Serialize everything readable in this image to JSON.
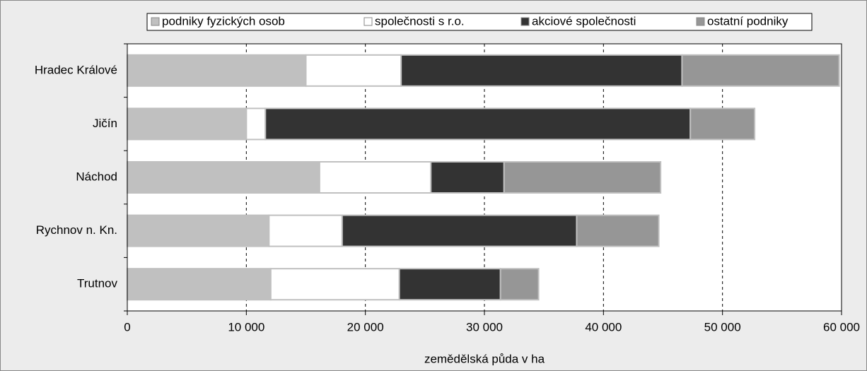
{
  "chart_data": {
    "type": "stacked-barh",
    "categories": [
      "Hradec Králové",
      "Jičín",
      "Náchod",
      "Rychnov n. Kn.",
      "Trutnov"
    ],
    "series": [
      {
        "name": "podniky fyzických osob",
        "color": "#c0c0c0",
        "values": [
          15000,
          10000,
          16150,
          11900,
          12050
        ]
      },
      {
        "name": "společnosti s r.o.",
        "color": "#ffffff",
        "values": [
          8000,
          1600,
          9350,
          6150,
          10800
        ]
      },
      {
        "name": "akciové společnosti",
        "color": "#333333",
        "values": [
          23600,
          35700,
          6150,
          19700,
          8500
        ]
      },
      {
        "name": "ostatní podniky",
        "color": "#969696",
        "values": [
          13200,
          5400,
          13150,
          6900,
          3200
        ]
      }
    ],
    "xlabel": "zemědělská půda v ha",
    "xlim": [
      0,
      60000
    ],
    "xticks": [
      0,
      {
        "value": 10000,
        "label": "10 000"
      },
      {
        "value": 20000,
        "label": "20 000"
      },
      {
        "value": 30000,
        "label": "30 000"
      },
      {
        "value": 40000,
        "label": "40 000"
      },
      {
        "value": 50000,
        "label": "50 000"
      },
      {
        "value": 60000,
        "label": "60 000"
      }
    ],
    "grid": true,
    "legend": "top"
  }
}
